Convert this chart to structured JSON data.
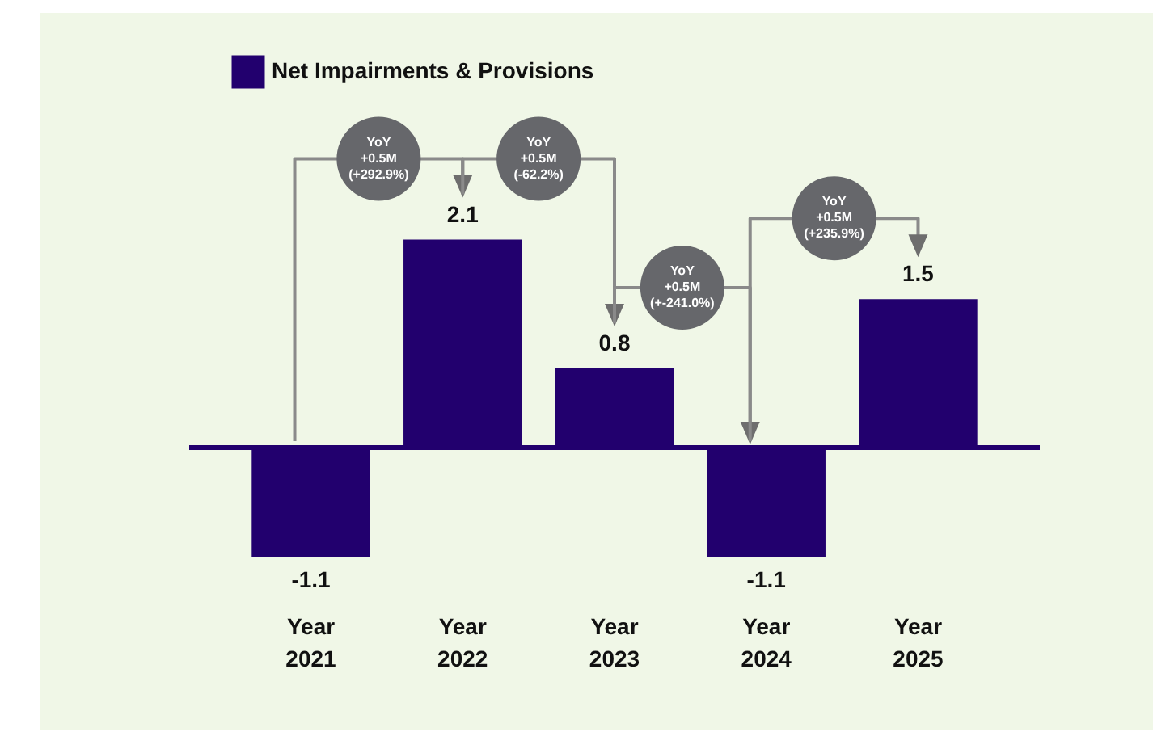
{
  "chart_data": {
    "type": "bar",
    "categories": [
      "Year 2021",
      "Year 2022",
      "Year 2023",
      "Year 2024",
      "Year 2025"
    ],
    "series": [
      {
        "name": "Net Impairments & Provisions",
        "color": "#22006e",
        "values": [
          -1.1,
          2.1,
          0.8,
          -1.1,
          1.5
        ]
      }
    ],
    "data_labels": true,
    "legend": "top left",
    "grid": false,
    "ref_lines": [
      {
        "axis": "y",
        "value": 0,
        "color": "#22006e"
      }
    ],
    "annotations": [
      "YoY\n+0.5M\n(+292.9%)",
      "YoY\n+0.5M\n(-62.2%)",
      "YoY\n+0.5M\n(+-241.0%)",
      "YoY\n+0.5M\n(+235.9%)"
    ]
  }
}
